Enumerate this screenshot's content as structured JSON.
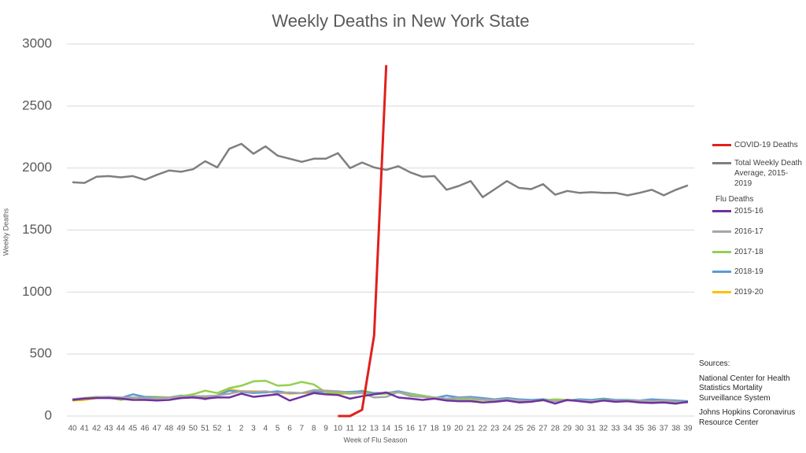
{
  "chart_data": {
    "type": "line",
    "title": "Weekly Deaths in New York State",
    "x_label": "Week of Flu Season",
    "y_label": "Weekly Deaths",
    "categories": [
      "40",
      "41",
      "42",
      "43",
      "44",
      "45",
      "46",
      "47",
      "48",
      "49",
      "50",
      "51",
      "52",
      "1",
      "2",
      "3",
      "4",
      "5",
      "6",
      "7",
      "8",
      "9",
      "10",
      "11",
      "12",
      "13",
      "14",
      "15",
      "16",
      "17",
      "18",
      "19",
      "20",
      "21",
      "22",
      "23",
      "24",
      "25",
      "26",
      "27",
      "28",
      "29",
      "30",
      "31",
      "32",
      "33",
      "34",
      "35",
      "36",
      "37",
      "38",
      "39"
    ],
    "ylim": [
      0,
      3000
    ],
    "yticks": [
      0,
      500,
      1000,
      1500,
      2000,
      2500,
      3000
    ],
    "grid": true,
    "legend_subtitle": "Flu Deaths",
    "sources": [
      "Sources:",
      "National Center for Health Statistics Mortality Surveillance System",
      "Johns Hopkins Coronavirus Resource Center"
    ],
    "series": [
      {
        "name": "COVID-19 Deaths",
        "color": "#e0201c",
        "values": [
          null,
          null,
          null,
          null,
          null,
          null,
          null,
          null,
          null,
          null,
          null,
          null,
          null,
          null,
          null,
          null,
          null,
          null,
          null,
          null,
          null,
          null,
          0,
          0,
          50,
          650,
          2830,
          null,
          null,
          null,
          null,
          null,
          null,
          null,
          null,
          null,
          null,
          null,
          null,
          null,
          null,
          null,
          null,
          null,
          null,
          null,
          null,
          null,
          null,
          null,
          null,
          null
        ]
      },
      {
        "name": "Total Weekly Death Average, 2015-2019",
        "color": "#7f7f7f",
        "values": [
          1885,
          1880,
          1930,
          1935,
          1925,
          1935,
          1905,
          1945,
          1980,
          1970,
          1990,
          2055,
          2005,
          2155,
          2195,
          2115,
          2175,
          2100,
          2075,
          2050,
          2075,
          2075,
          2120,
          2000,
          2045,
          2005,
          1985,
          2015,
          1965,
          1930,
          1935,
          1825,
          1855,
          1895,
          1765,
          1830,
          1895,
          1840,
          1830,
          1870,
          1785,
          1815,
          1800,
          1805,
          1800,
          1800,
          1780,
          1800,
          1825,
          1780,
          1825,
          1860
        ]
      },
      {
        "name": "2015-16",
        "color": "#7030a0",
        "values": [
          130,
          140,
          145,
          145,
          140,
          130,
          130,
          125,
          130,
          145,
          150,
          140,
          150,
          150,
          180,
          155,
          165,
          175,
          125,
          155,
          185,
          175,
          170,
          140,
          160,
          175,
          190,
          150,
          140,
          130,
          140,
          125,
          120,
          120,
          110,
          115,
          125,
          110,
          115,
          130,
          100,
          130,
          120,
          110,
          125,
          115,
          120,
          110,
          105,
          110,
          100,
          115
        ]
      },
      {
        "name": "2016-17",
        "color": "#a6a6a6",
        "values": [
          135,
          145,
          150,
          155,
          150,
          150,
          145,
          140,
          150,
          155,
          160,
          160,
          165,
          180,
          200,
          195,
          200,
          185,
          190,
          185,
          210,
          205,
          200,
          190,
          185,
          150,
          155,
          195,
          160,
          155,
          145,
          140,
          145,
          145,
          135,
          130,
          135,
          125,
          120,
          130,
          120,
          125,
          125,
          120,
          125,
          125,
          120,
          125,
          120,
          125,
          115,
          110
        ]
      },
      {
        "name": "2017-18",
        "color": "#92d050",
        "values": [
          135,
          145,
          155,
          150,
          130,
          150,
          140,
          145,
          150,
          160,
          175,
          205,
          185,
          225,
          245,
          280,
          285,
          245,
          250,
          275,
          255,
          190,
          185,
          180,
          185,
          175,
          180,
          190,
          175,
          165,
          150,
          140,
          135,
          130,
          130,
          125,
          125,
          120,
          120,
          125,
          135,
          130,
          125,
          120,
          130,
          120,
          125,
          120,
          115,
          120,
          115,
          110
        ]
      },
      {
        "name": "2018-19",
        "color": "#5b9bd5",
        "values": [
          130,
          140,
          150,
          155,
          145,
          175,
          155,
          150,
          150,
          165,
          160,
          135,
          165,
          205,
          195,
          185,
          190,
          200,
          185,
          185,
          200,
          195,
          195,
          195,
          200,
          185,
          185,
          200,
          180,
          165,
          145,
          165,
          150,
          155,
          145,
          135,
          145,
          135,
          130,
          135,
          125,
          125,
          135,
          130,
          140,
          130,
          130,
          125,
          135,
          130,
          125,
          120
        ]
      },
      {
        "name": "2019-20",
        "color": "#ffc000",
        "values": [
          125,
          130,
          145,
          150,
          140,
          145,
          155,
          155,
          150,
          150,
          155,
          150,
          165,
          215,
          200,
          200,
          195,
          190,
          180,
          185,
          185,
          175,
          175,
          185,
          205,
          185,
          185,
          195,
          null,
          null,
          null,
          null,
          null,
          null,
          null,
          null,
          null,
          null,
          null,
          null,
          null,
          null,
          null,
          null,
          null,
          null,
          null,
          null,
          null,
          null,
          null,
          null
        ]
      }
    ]
  }
}
